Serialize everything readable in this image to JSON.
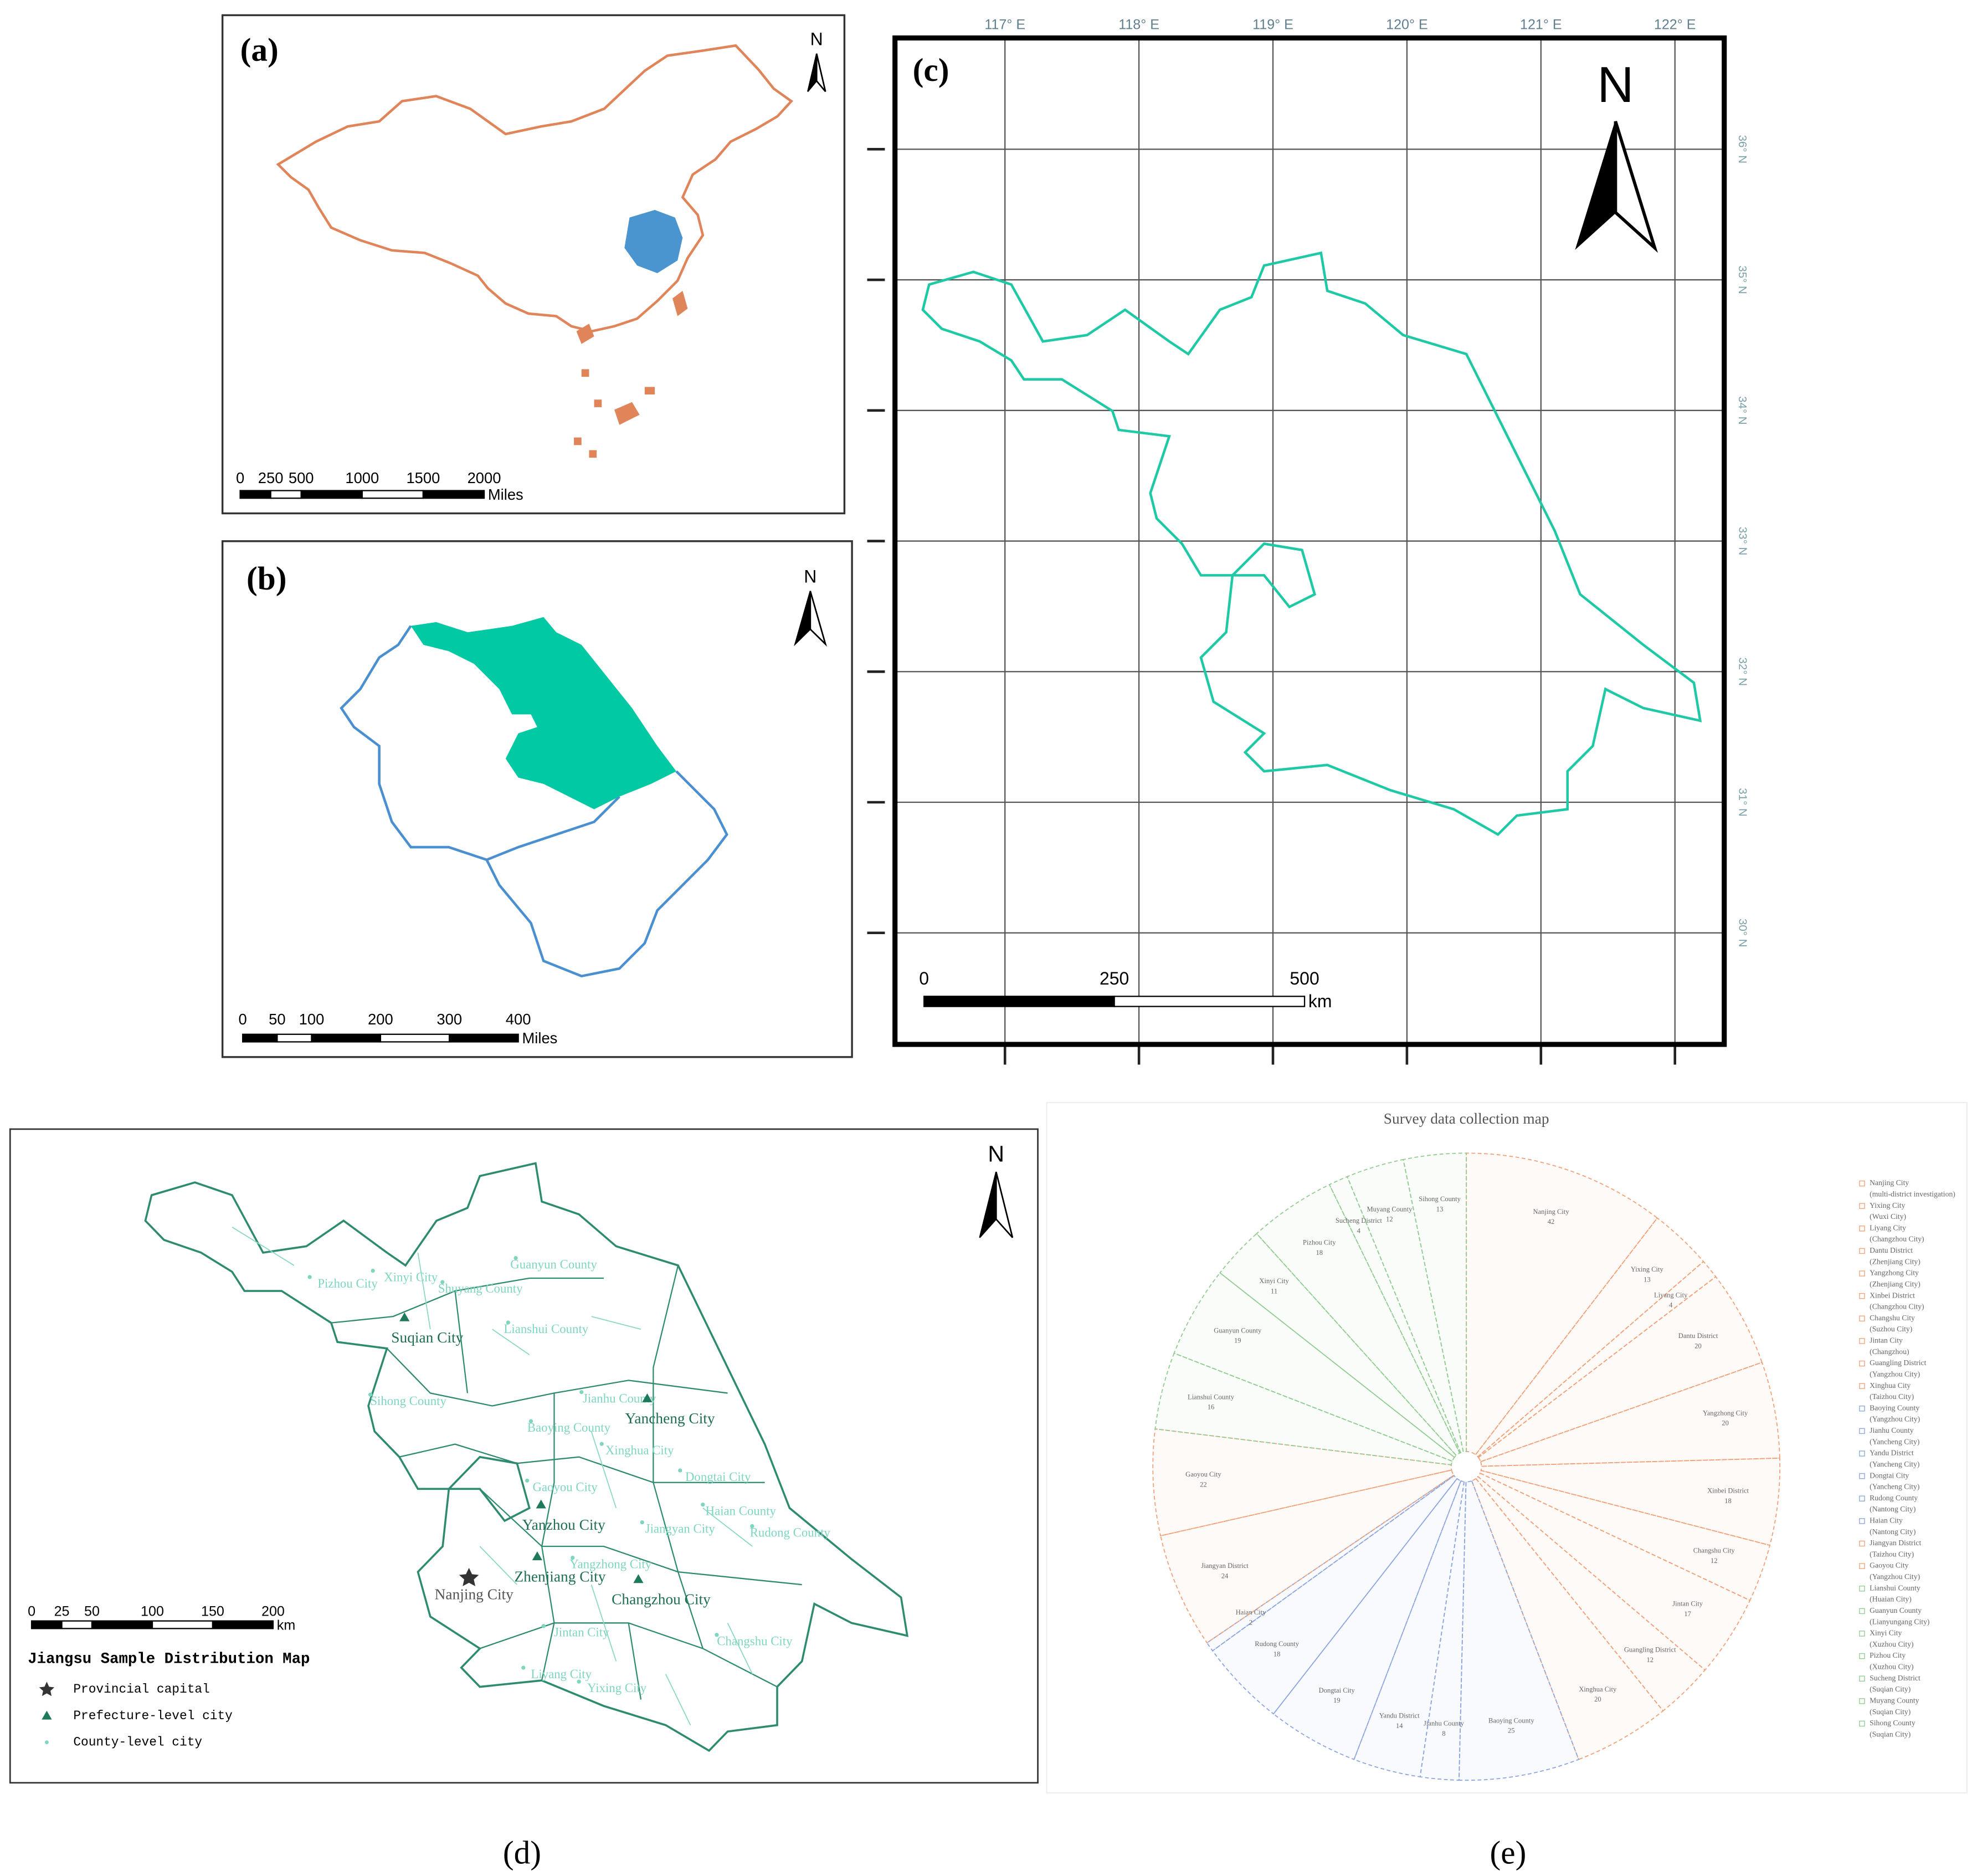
{
  "panels": {
    "a": {
      "label": "(a)",
      "north": "N",
      "scale_ticks": [
        0,
        250,
        500,
        1000,
        1500,
        2000
      ],
      "scale_unit": "Miles"
    },
    "b": {
      "label": "(b)",
      "north": "N",
      "scale_ticks": [
        0,
        50,
        100,
        200,
        300,
        400
      ],
      "scale_unit": "Miles"
    },
    "c": {
      "label": "(c)",
      "north": "N",
      "lon_ticks": [
        {
          "value": 117,
          "label": "117° E"
        },
        {
          "value": 118,
          "label": "118° E"
        },
        {
          "value": 119,
          "label": "119° E"
        },
        {
          "value": 120,
          "label": "120° E"
        },
        {
          "value": 121,
          "label": "121° E"
        },
        {
          "value": 122,
          "label": "122° E"
        }
      ],
      "lat_ticks": [
        {
          "value": 36,
          "label": "36° N"
        },
        {
          "value": 35,
          "label": "35° N"
        },
        {
          "value": 34,
          "label": "34° N"
        },
        {
          "value": 33,
          "label": "33° N"
        },
        {
          "value": 32,
          "label": "32° N"
        },
        {
          "value": 31,
          "label": "31° N"
        },
        {
          "value": 30,
          "label": "30° N"
        }
      ],
      "scale_ticks": [
        0,
        250,
        500
      ],
      "scale_unit": "km"
    },
    "d": {
      "label": "(d)",
      "north": "N",
      "title": "Jiangsu Sample Distribution Map",
      "legend": [
        "Provincial capital",
        "Prefecture-level city",
        "County-level city"
      ],
      "scale_ticks": [
        0,
        25,
        50,
        100,
        150,
        200
      ],
      "scale_unit": "km",
      "places": [
        "Pizhou City",
        "Xinyi City",
        "Guanyun County",
        "Shuyang County",
        "Suqian City",
        "Lianshui County",
        "Sihong County",
        "Jianhu County",
        "Yancheng City",
        "Baoying County",
        "Xinghua City",
        "Dongtai City",
        "Gaoyou City",
        "Haian County",
        "Rudong County",
        "Yanzhou City",
        "Jiangyan City",
        "Zhenjiang City",
        "Yangzhong City",
        "Changzhou City",
        "Nanjing City",
        "Jintan City",
        "Changshu City",
        "Liyang City",
        "Yixing City"
      ]
    },
    "e": {
      "label": "(e)"
    }
  },
  "chart_data": {
    "type": "pie",
    "title": "Survey data collection map",
    "categories": [
      "Nanjing City",
      "Yixing City",
      "Liyang City",
      "Dantu District",
      "Yangzhong City",
      "Xinbei District",
      "Changshu City",
      "Jintan City",
      "Guangling District",
      "Xinghua City",
      "Baoying County",
      "Jianhu County",
      "Yandu District",
      "Dongtai City",
      "Rudong County",
      "Haian City",
      "Jiangyan District",
      "Gaoyou City",
      "Lianshui County",
      "Guanyun County",
      "Xinyi City",
      "Pizhou City",
      "Sucheng District",
      "Muyang County",
      "Sihong County"
    ],
    "notes": [
      "(multi-district investigation)",
      "(Wuxi City)",
      "(Changzhou City)",
      "(Zhenjiang City)",
      "(Zhenjiang City)",
      "(Changzhou City)",
      "(Suzhou City)",
      "(Changzhou)",
      "(Yangzhou City)",
      "(Taizhou City)",
      "(Yangzhou City)",
      "(Yancheng City)",
      "(Yancheng City)",
      "(Yancheng City)",
      "(Nantong City)",
      "(Nantong City)",
      "(Taizhou City)",
      "(Yangzhou City)",
      "(Huaian City)",
      "(Lianyungang City)",
      "(Xuzhou City)",
      "(Xuzhou City)",
      "(Suqian City)",
      "(Suqian City)",
      "(Suqian City)"
    ],
    "values": [
      42,
      13,
      4,
      20,
      20,
      18,
      12,
      17,
      12,
      20,
      25,
      8,
      14,
      19,
      18,
      2,
      24,
      22,
      16,
      19,
      11,
      18,
      4,
      12,
      13
    ],
    "colors": [
      "#f0a27a",
      "#f0a27a",
      "#f0a27a",
      "#f0a27a",
      "#f0a27a",
      "#f0a27a",
      "#f0a27a",
      "#f0a27a",
      "#f0a27a",
      "#f0a27a",
      "#8ea6de",
      "#8ea6de",
      "#8ea6de",
      "#8ea6de",
      "#8ea6de",
      "#8ea6de",
      "#f0a27a",
      "#f0a27a",
      "#93cc93",
      "#93cc93",
      "#93cc93",
      "#93cc93",
      "#93cc93",
      "#93cc93",
      "#93cc93"
    ]
  }
}
